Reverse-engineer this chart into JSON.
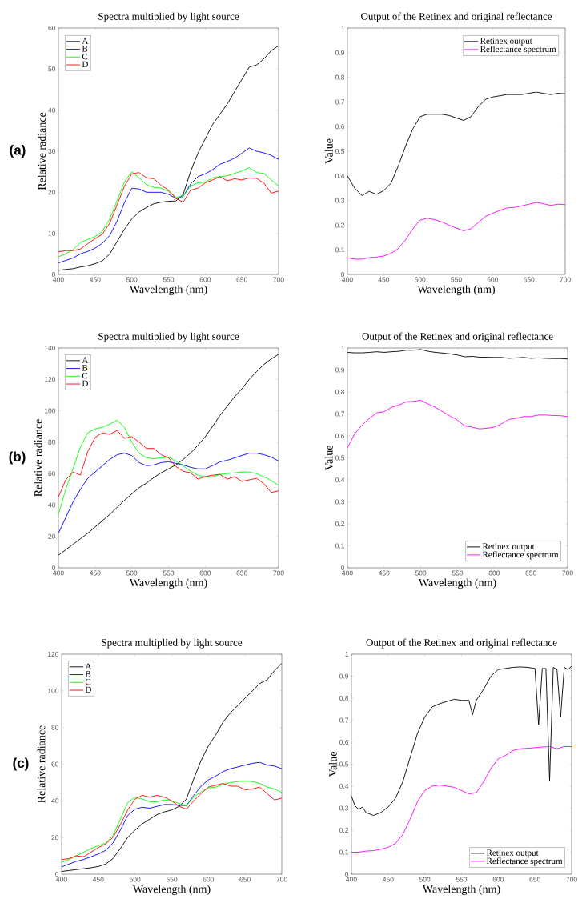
{
  "chart_data": [
    {
      "type": "line",
      "title": "Spectra multiplied by light source",
      "xlabel": "Wavelength (nm)",
      "ylabel": "Relative radiance",
      "annotations": [
        "(a)"
      ],
      "legend": "top left",
      "marker": "none",
      "xlim": [
        400,
        700
      ],
      "ylim": [
        0,
        60
      ],
      "xticks": [
        400,
        450,
        500,
        550,
        600,
        650,
        700
      ],
      "yticks": [
        0,
        10,
        20,
        30,
        40,
        50,
        60
      ],
      "x": [
        400,
        410,
        420,
        430,
        440,
        450,
        460,
        470,
        480,
        490,
        500,
        510,
        520,
        530,
        540,
        550,
        560,
        570,
        580,
        590,
        600,
        610,
        620,
        630,
        640,
        650,
        660,
        670,
        680,
        690,
        700
      ],
      "series": [
        {
          "name": "A",
          "color": "#000000",
          "values": [
            1,
            1.2,
            1.4,
            1.8,
            2.1,
            2.6,
            3.3,
            5,
            8,
            11,
            13.5,
            15.2,
            16.3,
            17.2,
            17.6,
            17.8,
            17.9,
            19.5,
            25,
            29.5,
            33,
            36.5,
            39,
            41.5,
            44.5,
            47.5,
            50.5,
            51,
            52.5,
            54.5,
            55.7
          ]
        },
        {
          "name": "B",
          "color": "#0000ff",
          "values": [
            2.8,
            3.4,
            4,
            5,
            5.6,
            6.4,
            7.6,
            9.5,
            13,
            17.5,
            21,
            20.8,
            20,
            20,
            20,
            19.5,
            18.5,
            19,
            22,
            23.8,
            24.5,
            25.5,
            26.8,
            27.5,
            28.3,
            29.5,
            30.8,
            30,
            29.6,
            29,
            28
          ]
        },
        {
          "name": "C",
          "color": "#00ff00",
          "values": [
            4.3,
            5,
            6,
            7.8,
            8.5,
            9.2,
            10.5,
            13.5,
            18,
            22.5,
            25,
            23.5,
            21.8,
            21.2,
            21,
            20.2,
            18.8,
            19,
            21.5,
            22.3,
            22.5,
            23.5,
            23.8,
            24,
            24.6,
            25.2,
            26,
            24.8,
            24.6,
            23,
            21.5
          ]
        },
        {
          "name": "D",
          "color": "#ff0000",
          "values": [
            5.5,
            5.8,
            5.8,
            6.2,
            7.5,
            8.7,
            9.8,
            12.5,
            17,
            21.5,
            24.5,
            24.8,
            23.5,
            23.3,
            21.7,
            20.5,
            18.5,
            17.6,
            20.5,
            21,
            22.3,
            23,
            23.8,
            22.8,
            23.3,
            23,
            23.5,
            23.4,
            22.2,
            19.8,
            20.3
          ]
        }
      ]
    },
    {
      "type": "line",
      "title": "Output of the Retinex and original reflectance",
      "xlabel": "Wavelength (nm)",
      "ylabel": "Value",
      "legend": "top right",
      "marker": "none",
      "xlim": [
        400,
        700
      ],
      "ylim": [
        0,
        1
      ],
      "xticks": [
        400,
        450,
        500,
        550,
        600,
        650,
        700
      ],
      "yticks": [
        0,
        0.1,
        0.2,
        0.3,
        0.4,
        0.5,
        0.6,
        0.7,
        0.8,
        0.9,
        1
      ],
      "x": [
        400,
        410,
        420,
        430,
        440,
        450,
        460,
        470,
        480,
        490,
        500,
        510,
        520,
        530,
        540,
        550,
        560,
        570,
        580,
        590,
        600,
        610,
        620,
        630,
        640,
        650,
        660,
        670,
        680,
        690,
        700
      ],
      "series": [
        {
          "name": "Retinex output",
          "color": "#000000",
          "values": [
            0.4,
            0.35,
            0.32,
            0.337,
            0.325,
            0.34,
            0.37,
            0.44,
            0.52,
            0.59,
            0.64,
            0.65,
            0.65,
            0.65,
            0.645,
            0.635,
            0.625,
            0.64,
            0.68,
            0.71,
            0.72,
            0.725,
            0.73,
            0.73,
            0.73,
            0.735,
            0.74,
            0.735,
            0.73,
            0.735,
            0.733
          ]
        },
        {
          "name": "Reflectance spectrum",
          "color": "#ff00ff",
          "values": [
            0.067,
            0.062,
            0.062,
            0.068,
            0.07,
            0.075,
            0.085,
            0.105,
            0.14,
            0.185,
            0.22,
            0.228,
            0.222,
            0.213,
            0.2,
            0.188,
            0.177,
            0.185,
            0.21,
            0.235,
            0.248,
            0.26,
            0.27,
            0.272,
            0.278,
            0.285,
            0.292,
            0.287,
            0.28,
            0.285,
            0.283
          ]
        }
      ]
    },
    {
      "type": "line",
      "title": "Spectra multiplied by light source",
      "xlabel": "Wavelength (nm)",
      "ylabel": "Relative radiance",
      "annotations": [
        "(b)"
      ],
      "legend": "top left",
      "marker": "none",
      "xlim": [
        400,
        700
      ],
      "ylim": [
        0,
        140
      ],
      "xticks": [
        400,
        450,
        500,
        550,
        600,
        650,
        700
      ],
      "yticks": [
        0,
        20,
        40,
        60,
        80,
        100,
        120,
        140
      ],
      "x": [
        400,
        410,
        420,
        430,
        440,
        450,
        460,
        470,
        480,
        490,
        500,
        510,
        520,
        530,
        540,
        550,
        560,
        570,
        580,
        590,
        600,
        610,
        620,
        630,
        640,
        650,
        660,
        670,
        680,
        690,
        700
      ],
      "series": [
        {
          "name": "A",
          "color": "#000000",
          "values": [
            8,
            11.5,
            15,
            18.5,
            22,
            26,
            30,
            34,
            38.5,
            43,
            47,
            51,
            54,
            57.5,
            60.5,
            63,
            65.5,
            69,
            73,
            78,
            83.5,
            90,
            97,
            103,
            109,
            114,
            120,
            125,
            129.5,
            133,
            136
          ]
        },
        {
          "name": "B",
          "color": "#0000ff",
          "values": [
            22,
            32,
            42,
            50,
            57,
            61,
            65,
            69,
            72,
            73,
            71.5,
            67,
            65,
            65.5,
            67,
            67.5,
            66.5,
            65.5,
            64,
            63,
            63,
            65,
            67.5,
            68.5,
            70,
            71.5,
            73,
            73,
            72,
            70.5,
            68
          ]
        },
        {
          "name": "C",
          "color": "#00ff00",
          "values": [
            34,
            50,
            63,
            77,
            86,
            88.5,
            89.5,
            91.5,
            94,
            89.5,
            80,
            73,
            70,
            69.5,
            70,
            70.5,
            68,
            65,
            61.5,
            59,
            58,
            58,
            59.5,
            60,
            60.5,
            61,
            61,
            60,
            58,
            55.5,
            52.5
          ]
        },
        {
          "name": "D",
          "color": "#ff0000",
          "values": [
            45,
            56,
            61,
            59,
            74,
            83,
            86,
            85,
            87.5,
            82.5,
            83.5,
            80,
            76,
            76,
            72,
            70,
            64.5,
            61.5,
            60.5,
            56.5,
            58,
            59,
            59.5,
            56.5,
            58,
            55,
            56,
            57,
            53.5,
            48,
            49
          ]
        }
      ]
    },
    {
      "type": "line",
      "title": "Output of the Retinex and original reflectance",
      "xlabel": "Wavelength (nm)",
      "ylabel": "Value",
      "legend": "bottom right",
      "marker": "none",
      "xlim": [
        400,
        700
      ],
      "ylim": [
        0,
        1
      ],
      "xticks": [
        400,
        450,
        500,
        550,
        600,
        650,
        700
      ],
      "yticks": [
        0,
        0.1,
        0.2,
        0.3,
        0.4,
        0.5,
        0.6,
        0.7,
        0.8,
        0.9,
        1
      ],
      "x": [
        400,
        410,
        420,
        430,
        440,
        450,
        460,
        470,
        480,
        490,
        500,
        510,
        520,
        530,
        540,
        550,
        560,
        570,
        580,
        590,
        600,
        610,
        620,
        630,
        640,
        650,
        660,
        670,
        680,
        690,
        700
      ],
      "series": [
        {
          "name": "Retinex output",
          "color": "#000000",
          "values": [
            0.98,
            0.978,
            0.978,
            0.98,
            0.983,
            0.98,
            0.983,
            0.985,
            0.99,
            0.99,
            0.993,
            0.985,
            0.98,
            0.977,
            0.973,
            0.968,
            0.96,
            0.962,
            0.958,
            0.958,
            0.957,
            0.957,
            0.953,
            0.955,
            0.957,
            0.953,
            0.955,
            0.953,
            0.952,
            0.952,
            0.95
          ]
        },
        {
          "name": "Reflectance spectrum",
          "color": "#ff00ff",
          "values": [
            0.545,
            0.61,
            0.65,
            0.68,
            0.705,
            0.71,
            0.73,
            0.74,
            0.755,
            0.757,
            0.762,
            0.745,
            0.73,
            0.71,
            0.69,
            0.672,
            0.645,
            0.64,
            0.632,
            0.635,
            0.64,
            0.655,
            0.675,
            0.68,
            0.688,
            0.688,
            0.695,
            0.695,
            0.693,
            0.692,
            0.688
          ]
        }
      ]
    },
    {
      "type": "line",
      "title": "Spectra multiplied by light source",
      "xlabel": "Wavelength (nm)",
      "ylabel": "Relative radiance",
      "annotations": [
        "(c)"
      ],
      "legend": "top left",
      "marker": "none",
      "xlim": [
        400,
        700
      ],
      "ylim": [
        0,
        120
      ],
      "xticks": [
        400,
        450,
        500,
        550,
        600,
        650,
        700
      ],
      "yticks": [
        0,
        20,
        40,
        60,
        80,
        100,
        120
      ],
      "x": [
        400,
        410,
        420,
        430,
        440,
        450,
        460,
        470,
        480,
        490,
        500,
        510,
        520,
        530,
        540,
        550,
        560,
        570,
        580,
        590,
        600,
        610,
        620,
        630,
        640,
        650,
        660,
        670,
        680,
        690,
        700
      ],
      "series": [
        {
          "name": "A",
          "color": "#000000",
          "values": [
            1.5,
            2,
            2.5,
            3,
            3.5,
            4.2,
            5.5,
            8.5,
            14,
            20,
            24,
            27.5,
            30,
            32.5,
            34,
            35,
            37,
            41,
            52,
            62,
            70,
            76,
            83,
            88,
            92,
            96,
            100,
            104,
            106,
            111,
            115
          ]
        },
        {
          "name": "B",
          "color": "#0000ff",
          "values": [
            4,
            5.5,
            7,
            8,
            9.5,
            11,
            13,
            17,
            24,
            32,
            35.5,
            36.5,
            36,
            37,
            38,
            38,
            37.5,
            37.5,
            43,
            48,
            51.5,
            53.5,
            56,
            57.5,
            58.5,
            59.5,
            60.5,
            61,
            59.5,
            59,
            57.5
          ]
        },
        {
          "name": "C",
          "color": "#00ff00",
          "values": [
            6.5,
            8,
            10,
            12,
            14,
            15.5,
            17,
            21,
            30,
            39,
            42,
            41,
            39.5,
            39.5,
            40.5,
            40,
            38.5,
            37.5,
            42,
            45,
            47,
            47.5,
            49,
            50,
            50.5,
            51,
            50.5,
            49.5,
            47.5,
            46.5,
            44.5
          ]
        },
        {
          "name": "D",
          "color": "#ff0000",
          "values": [
            8,
            8.5,
            10,
            9.5,
            12,
            14.5,
            16.5,
            20,
            27,
            35,
            41,
            43,
            42,
            43,
            42,
            40,
            37,
            35.5,
            40,
            44,
            47.5,
            48.5,
            49.5,
            48,
            48,
            46,
            46.5,
            47.5,
            44,
            40.5,
            41.5
          ]
        }
      ]
    },
    {
      "type": "line",
      "title": "Output of the Retinex and original reflectance",
      "xlabel": "Wavelength (nm)",
      "ylabel": "Value",
      "legend": "bottom right",
      "marker": "none",
      "xlim": [
        400,
        700
      ],
      "ylim": [
        0,
        1
      ],
      "xticks": [
        400,
        450,
        500,
        550,
        600,
        650,
        700
      ],
      "yticks": [
        0,
        0.1,
        0.2,
        0.3,
        0.4,
        0.5,
        0.6,
        0.7,
        0.8,
        0.9,
        1
      ],
      "x": [
        400,
        410,
        420,
        430,
        440,
        450,
        460,
        470,
        480,
        490,
        500,
        510,
        520,
        530,
        540,
        550,
        560,
        570,
        580,
        590,
        600,
        610,
        620,
        630,
        640,
        650,
        660,
        670,
        680,
        690,
        700
      ],
      "series": [
        {
          "name": "Retinex output",
          "color": "#000000",
          "x": [
            400,
            405,
            410,
            415,
            420,
            430,
            440,
            450,
            460,
            470,
            480,
            490,
            500,
            510,
            520,
            530,
            540,
            550,
            560,
            565,
            570,
            580,
            590,
            600,
            610,
            620,
            630,
            640,
            650,
            655,
            660,
            665,
            670,
            675,
            680,
            685,
            690,
            695,
            700
          ],
          "values": [
            0.355,
            0.31,
            0.295,
            0.305,
            0.28,
            0.267,
            0.28,
            0.305,
            0.345,
            0.42,
            0.53,
            0.64,
            0.715,
            0.76,
            0.775,
            0.785,
            0.795,
            0.79,
            0.79,
            0.725,
            0.79,
            0.84,
            0.9,
            0.93,
            0.935,
            0.94,
            0.942,
            0.94,
            0.935,
            0.68,
            0.935,
            0.935,
            0.425,
            0.94,
            0.93,
            0.715,
            0.94,
            0.93,
            0.945
          ]
        },
        {
          "name": "Reflectance spectrum",
          "color": "#ff00ff",
          "values": [
            0.1,
            0.1,
            0.105,
            0.107,
            0.113,
            0.122,
            0.14,
            0.18,
            0.25,
            0.33,
            0.38,
            0.4,
            0.405,
            0.4,
            0.395,
            0.38,
            0.365,
            0.37,
            0.42,
            0.48,
            0.525,
            0.54,
            0.562,
            0.57,
            0.572,
            0.575,
            0.578,
            0.58,
            0.57,
            0.58,
            0.58
          ]
        }
      ]
    }
  ]
}
